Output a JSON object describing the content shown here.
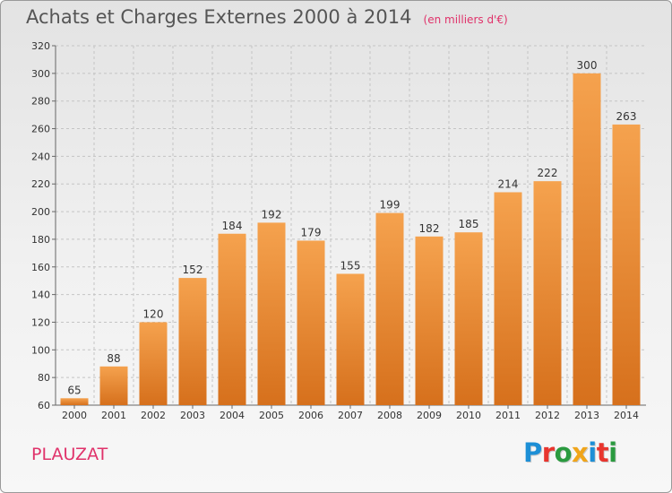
{
  "title": "Achats et Charges Externes 2000 à 2014",
  "subtitle": "(en milliers d'€)",
  "commune": "PLAUZAT",
  "logo": {
    "text": "Proxiti",
    "letters": [
      {
        "char": "P",
        "color": "#1d8fd6"
      },
      {
        "char": "r",
        "color": "#e8352e"
      },
      {
        "char": "o",
        "color": "#2a9a3f"
      },
      {
        "char": "x",
        "color": "#f0a51a"
      },
      {
        "char": "i",
        "color": "#1d8fd6"
      },
      {
        "char": "t",
        "color": "#e8352e"
      },
      {
        "char": "i",
        "color": "#2a9a3f"
      }
    ]
  },
  "colors": {
    "bar_top": "#f5a24e",
    "bar_bottom": "#d6701c",
    "grid": "#c4c4c4",
    "accent": "#e0326a"
  },
  "chart_data": {
    "type": "bar",
    "categories": [
      "2000",
      "2001",
      "2002",
      "2003",
      "2004",
      "2005",
      "2006",
      "2007",
      "2008",
      "2009",
      "2010",
      "2011",
      "2012",
      "2013",
      "2014"
    ],
    "values": [
      65,
      88,
      120,
      152,
      184,
      192,
      179,
      155,
      199,
      182,
      185,
      214,
      222,
      300,
      263
    ],
    "yticks": [
      60,
      80,
      100,
      120,
      140,
      160,
      180,
      200,
      220,
      240,
      260,
      280,
      300,
      320
    ],
    "ylim": [
      60,
      320
    ],
    "grid": "horizontal",
    "legend": "none",
    "data_labels": true
  }
}
